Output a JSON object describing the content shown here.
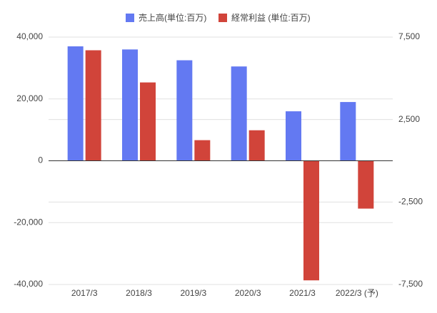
{
  "chart_data": {
    "type": "bar",
    "categories": [
      "2017/3",
      "2018/3",
      "2019/3",
      "2020/3",
      "2021/3",
      "2022/3 (予)"
    ],
    "series": [
      {
        "name": "売上高(単位:百万)",
        "color": "#6379f2",
        "values": [
          37000,
          36000,
          32500,
          30500,
          16000,
          19000
        ]
      },
      {
        "name": "経常利益 (単位:百万)",
        "color": "#d1443a",
        "axis": "y2",
        "values": [
          6700,
          4750,
          1250,
          1850,
          -7250,
          -2900
        ]
      }
    ],
    "ylim": [
      -40000,
      40000
    ],
    "yticks": [
      {
        "value": -40000,
        "label": "-40,000"
      },
      {
        "value": -20000,
        "label": "-20,000"
      },
      0,
      {
        "value": 20000,
        "label": "20,000"
      },
      {
        "value": 40000,
        "label": "40,000"
      }
    ],
    "y2lim": [
      -7500,
      7500
    ],
    "y2ticks": [
      {
        "value": -7500,
        "label": "-7,500"
      },
      {
        "value": -2500,
        "label": "-2,500"
      },
      {
        "value": 2500,
        "label": "2,500"
      },
      {
        "value": 7500,
        "label": "7,500"
      }
    ],
    "grid": true,
    "legend": "top"
  }
}
